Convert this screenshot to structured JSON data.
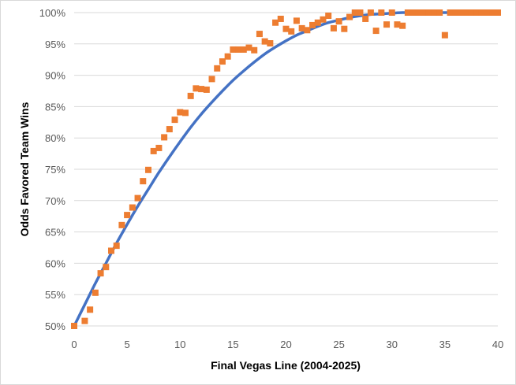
{
  "chart_data": {
    "type": "scatter",
    "title": "",
    "xlabel": "Final Vegas Line (2004-2025)",
    "ylabel": "Odds Favored Team Wins",
    "xlim": [
      0,
      40
    ],
    "ylim": [
      0.5,
      1.0
    ],
    "x_ticks": [
      0,
      5,
      10,
      15,
      20,
      25,
      30,
      35,
      40
    ],
    "x_tick_labels": [
      "0",
      "5",
      "10",
      "15",
      "20",
      "25",
      "30",
      "35",
      "40"
    ],
    "y_ticks": [
      0.5,
      0.55,
      0.6,
      0.65,
      0.7,
      0.75,
      0.8,
      0.85,
      0.9,
      0.95,
      1.0
    ],
    "y_tick_labels": [
      "50%",
      "55%",
      "60%",
      "65%",
      "70%",
      "75%",
      "80%",
      "85%",
      "90%",
      "95%",
      "100%"
    ],
    "grid": "horizontal",
    "legend": "none",
    "colors": {
      "points": "#ED7D31",
      "trendline": "#4472C4",
      "grid": "#d9d9d9"
    },
    "series": [
      {
        "kind": "points",
        "x": [
          0,
          1,
          1.5,
          2,
          2.5,
          3,
          3.5,
          4,
          4.5,
          5,
          5.5,
          6,
          6.5,
          7,
          7.5,
          8,
          8.5,
          9,
          9.5,
          10,
          10.5,
          11,
          11.5,
          12,
          12.5,
          13,
          13.5,
          14,
          14.5,
          15,
          15.5,
          16,
          16.5,
          17,
          17.5,
          18,
          18.5,
          19,
          19.5,
          20,
          20.5,
          21,
          21.5,
          22,
          22.5,
          23,
          23.5,
          24,
          24.5,
          25,
          25.5,
          26,
          26.5,
          27,
          27.5,
          28,
          28.5,
          29,
          29.5,
          30,
          30.5,
          31,
          31.5,
          32,
          32.5,
          33,
          33.5,
          34,
          34.5,
          35,
          35.5,
          36,
          36.5,
          37,
          37.5,
          38,
          38.5,
          39,
          39.5,
          40
        ],
        "y": [
          0.5,
          0.508,
          0.526,
          0.553,
          0.584,
          0.594,
          0.62,
          0.628,
          0.661,
          0.677,
          0.689,
          0.704,
          0.731,
          0.749,
          0.779,
          0.784,
          0.801,
          0.814,
          0.829,
          0.841,
          0.84,
          0.867,
          0.879,
          0.878,
          0.877,
          0.894,
          0.911,
          0.922,
          0.93,
          0.941,
          0.941,
          0.941,
          0.944,
          0.94,
          0.966,
          0.954,
          0.951,
          0.984,
          0.99,
          0.974,
          0.97,
          0.987,
          0.975,
          0.972,
          0.98,
          0.984,
          0.989,
          0.995,
          0.975,
          0.986,
          0.974,
          0.993,
          1.0,
          1.0,
          0.99,
          1.0,
          0.971,
          1.0,
          0.981,
          1.0,
          0.981,
          0.979,
          1.0,
          1.0,
          1.0,
          1.0,
          1.0,
          1.0,
          1.0,
          0.964,
          1.0,
          1.0,
          1.0,
          1.0,
          1.0,
          1.0,
          1.0,
          1.0,
          1.0,
          1.0
        ]
      },
      {
        "kind": "trendline",
        "x": [
          0,
          1,
          2,
          3,
          4,
          5,
          6,
          7,
          8,
          9,
          10,
          11,
          12,
          13,
          14,
          15,
          16,
          17,
          18,
          19,
          20,
          21,
          22,
          23,
          24,
          25,
          26,
          27,
          28,
          29,
          30,
          31,
          32,
          33,
          34,
          35,
          36,
          37,
          38,
          39,
          40
        ],
        "y": [
          0.5,
          0.534,
          0.568,
          0.6,
          0.632,
          0.662,
          0.691,
          0.718,
          0.745,
          0.77,
          0.794,
          0.817,
          0.838,
          0.857,
          0.875,
          0.892,
          0.907,
          0.921,
          0.934,
          0.945,
          0.955,
          0.964,
          0.971,
          0.978,
          0.984,
          0.988,
          0.992,
          0.995,
          0.997,
          0.998,
          0.999,
          1.0,
          1.0,
          1.0,
          1.0,
          1.0,
          1.0,
          1.0,
          1.0,
          1.0,
          1.0
        ]
      }
    ]
  }
}
